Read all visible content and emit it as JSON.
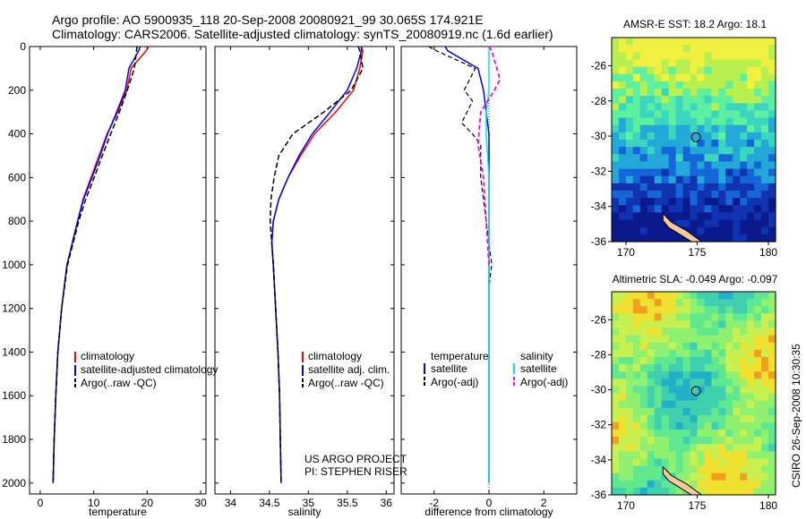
{
  "title": {
    "line1": "Argo profile: AO 5900935_118 20-Sep-2008 20080921_99 30.065S 174.921E",
    "line2": "Climatology: CARS2006. Satellite-adjusted climatology: synTS_20080919.nc (1.6d earlier)"
  },
  "colors": {
    "climatology": "#ff0000",
    "satellite": "#0000ff",
    "argo": "#000000",
    "sal_satellite": "#00e5ee",
    "sal_argo": "#ff00ff"
  },
  "credit": {
    "line1": "US ARGO PROJECT",
    "line2": "PI: STEPHEN RISER"
  },
  "side_label": "CSIRO 26-Sep-2008 10:30:35",
  "chart_data": [
    {
      "type": "line",
      "xlabel": "temperature",
      "xlim": [
        -2,
        31
      ],
      "ylim": [
        2050,
        0
      ],
      "xticks": [
        "0",
        "10",
        "20",
        "30"
      ],
      "yticks": [
        "0",
        "200",
        "400",
        "600",
        "800",
        "1000",
        "1200",
        "1400",
        "1600",
        "1800",
        "2000"
      ],
      "legend": {
        "placement": "lower-left",
        "entries": [
          "climatology",
          "satellite-adjusted climatology",
          "Argo(..raw -QC)"
        ]
      },
      "series": [
        {
          "name": "climatology",
          "x": [
            20.3,
            19.8,
            17.0,
            16.2,
            14.5,
            12.5,
            11.0,
            9.5,
            8.0,
            7.0,
            5.0,
            4.0,
            3.3,
            2.9,
            2.6,
            2.5,
            2.4
          ],
          "y": [
            0,
            20,
            100,
            200,
            300,
            400,
            500,
            600,
            700,
            800,
            1000,
            1200,
            1400,
            1600,
            1800,
            1900,
            2000
          ]
        },
        {
          "name": "satellite-adjusted climatology",
          "x": [
            18.7,
            18.4,
            16.6,
            15.9,
            14.3,
            12.6,
            11.2,
            9.7,
            8.1,
            7.0,
            5.0,
            4.0,
            3.3,
            2.9,
            2.6,
            2.5,
            2.4
          ],
          "y": [
            0,
            20,
            100,
            200,
            300,
            400,
            500,
            600,
            700,
            800,
            1000,
            1200,
            1400,
            1600,
            1800,
            1900,
            2000
          ]
        },
        {
          "name": "Argo(..raw -QC)",
          "x": [
            18.1,
            18.0,
            17.6,
            16.3,
            14.8,
            13.2,
            11.6,
            10.1,
            8.5,
            7.2,
            5.1,
            4.0,
            3.3,
            2.9,
            2.6,
            2.5,
            2.4
          ],
          "y": [
            0,
            20,
            100,
            200,
            300,
            400,
            500,
            600,
            700,
            800,
            1000,
            1200,
            1400,
            1600,
            1800,
            1900,
            1990
          ]
        }
      ]
    },
    {
      "type": "line",
      "xlabel": "salinity",
      "xlim": [
        33.8,
        36.1
      ],
      "ylim": [
        2050,
        0
      ],
      "xticks": [
        "34",
        "34.5",
        "35",
        "35.5",
        "36"
      ],
      "legend": {
        "placement": "lower-left",
        "entries": [
          "climatology",
          "satellite adj. clim.",
          "Argo(..raw -QC)"
        ]
      },
      "series": [
        {
          "name": "climatology",
          "x": [
            35.68,
            35.7,
            35.66,
            35.58,
            35.35,
            35.08,
            34.9,
            34.74,
            34.62,
            34.55,
            34.53,
            34.55,
            34.58,
            34.61,
            34.63,
            34.64,
            34.65
          ],
          "y": [
            0,
            20,
            100,
            200,
            300,
            400,
            500,
            600,
            700,
            800,
            900,
            1000,
            1200,
            1400,
            1600,
            1800,
            2000
          ]
        },
        {
          "name": "satellite adj. clim.",
          "x": [
            35.68,
            35.68,
            35.62,
            35.5,
            35.28,
            35.05,
            34.88,
            34.74,
            34.62,
            34.55,
            34.53,
            34.55,
            34.58,
            34.61,
            34.63,
            34.64,
            34.65
          ],
          "y": [
            0,
            20,
            100,
            200,
            300,
            400,
            500,
            600,
            700,
            800,
            900,
            1000,
            1200,
            1400,
            1600,
            1800,
            2000
          ]
        },
        {
          "name": "Argo(..raw -QC)",
          "x": [
            35.64,
            35.66,
            35.7,
            35.55,
            35.2,
            34.8,
            34.62,
            34.56,
            34.52,
            34.51,
            34.53,
            34.55,
            34.58,
            34.61,
            34.63,
            34.64,
            34.65
          ],
          "y": [
            0,
            20,
            100,
            200,
            300,
            400,
            500,
            600,
            700,
            800,
            900,
            1000,
            1200,
            1400,
            1600,
            1800,
            1990
          ]
        }
      ]
    },
    {
      "type": "line",
      "xlabel": "difference from climatology",
      "xlim": [
        -3.2,
        3.2
      ],
      "ylim": [
        2050,
        0
      ],
      "xticks": [
        "-2",
        "0",
        "2"
      ],
      "legend": {
        "placement": "lower",
        "headers": [
          "temperature",
          "salinity"
        ],
        "entries": [
          "satellite",
          "Argo(-adj)",
          "satellite",
          "Argo(-adj)"
        ]
      },
      "series": [
        {
          "name": "temperature satellite",
          "x": [
            -1.6,
            -1.5,
            -0.4,
            -0.2,
            -0.1,
            0,
            0,
            0,
            0,
            0,
            0
          ],
          "y": [
            0,
            20,
            100,
            200,
            300,
            400,
            600,
            800,
            1000,
            1500,
            2000
          ]
        },
        {
          "name": "temperature Argo(-adj)",
          "x": [
            -2.2,
            -1.9,
            -0.5,
            -0.9,
            -0.6,
            -0.8,
            -1.0,
            -0.6,
            -0.3,
            -0.3,
            -0.1,
            0.1,
            0
          ],
          "y": [
            0,
            20,
            100,
            200,
            250,
            300,
            350,
            400,
            450,
            600,
            800,
            1000,
            1100
          ]
        },
        {
          "name": "salinity satellite",
          "x": [
            0,
            0,
            0,
            0,
            -0.1,
            -0.1,
            0,
            0,
            0
          ],
          "y": [
            0,
            20,
            100,
            200,
            300,
            400,
            600,
            1000,
            2000
          ]
        },
        {
          "name": "salinity Argo(-adj)",
          "x": [
            0,
            0.1,
            0.4,
            0.2,
            -0.3,
            -0.4,
            -0.2,
            -0.1,
            0
          ],
          "y": [
            0,
            20,
            150,
            200,
            300,
            450,
            600,
            800,
            1000
          ]
        }
      ]
    },
    {
      "type": "heatmap",
      "title": "AMSR-E SST: 18.2 Argo: 18.1",
      "xticks": [
        "170",
        "175",
        "180"
      ],
      "yticks": [
        "-26",
        "-28",
        "-30",
        "-32",
        "-34",
        "-36"
      ],
      "xlim": [
        169,
        180.5
      ],
      "ylim": [
        -36,
        -24.4
      ],
      "marker": {
        "lon": 174.921,
        "lat": -30.065
      }
    },
    {
      "type": "heatmap",
      "title": "Altimetric SLA: -0.049 Argo: -0.097",
      "xticks": [
        "170",
        "175",
        "180"
      ],
      "yticks": [
        "-26",
        "-28",
        "-30",
        "-32",
        "-34",
        "-36"
      ],
      "xlim": [
        169,
        180.5
      ],
      "ylim": [
        -36,
        -24.4
      ],
      "marker": {
        "lon": 174.921,
        "lat": -30.065
      }
    }
  ]
}
